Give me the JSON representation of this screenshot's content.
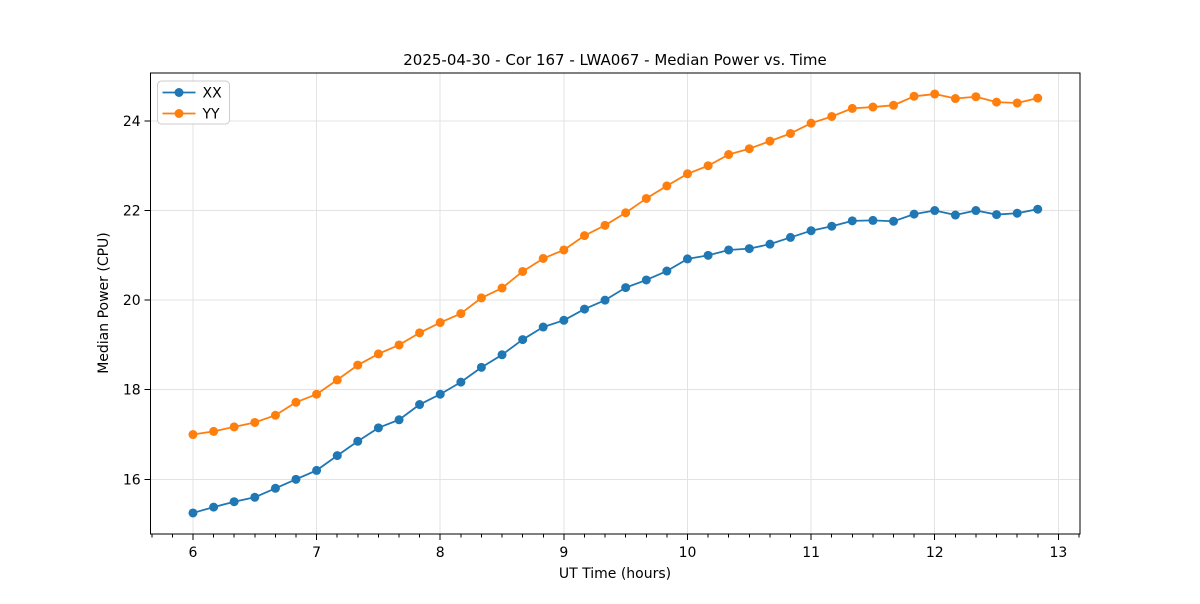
{
  "chart_data": {
    "type": "line",
    "title": "2025-04-30 - Cor 167 - LWA067 - Median Power vs. Time",
    "xlabel": "UT Time (hours)",
    "ylabel": "Median Power (CPU)",
    "xlim": [
      5.658,
      13.175
    ],
    "ylim": [
      14.78,
      25.07
    ],
    "xticks": [
      6,
      7,
      8,
      9,
      10,
      11,
      12,
      13
    ],
    "yticks": [
      16,
      18,
      20,
      22,
      24
    ],
    "x_minor_step": 0.166667,
    "grid": true,
    "legend_position": "upper left",
    "x": [
      6.0,
      6.167,
      6.333,
      6.5,
      6.667,
      6.833,
      7.0,
      7.167,
      7.333,
      7.5,
      7.667,
      7.833,
      8.0,
      8.167,
      8.333,
      8.5,
      8.667,
      8.833,
      9.0,
      9.167,
      9.333,
      9.5,
      9.667,
      9.833,
      10.0,
      10.167,
      10.333,
      10.5,
      10.667,
      10.833,
      11.0,
      11.167,
      11.333,
      11.5,
      11.667,
      11.833,
      12.0,
      12.167,
      12.333,
      12.5,
      12.667,
      12.833
    ],
    "series": [
      {
        "name": "XX",
        "color": "#1f77b4",
        "values": [
          15.25,
          15.38,
          15.5,
          15.6,
          15.8,
          16.0,
          16.2,
          16.53,
          16.85,
          17.15,
          17.33,
          17.67,
          17.9,
          18.17,
          18.5,
          18.78,
          19.12,
          19.4,
          19.55,
          19.8,
          20.0,
          20.28,
          20.45,
          20.65,
          20.92,
          21.0,
          21.12,
          21.15,
          21.25,
          21.4,
          21.55,
          21.65,
          21.77,
          21.78,
          21.76,
          21.92,
          22.0,
          21.9,
          22.0,
          21.91,
          21.94,
          22.03
        ]
      },
      {
        "name": "YY",
        "color": "#ff7f0e",
        "values": [
          17.0,
          17.07,
          17.17,
          17.27,
          17.43,
          17.72,
          17.9,
          18.22,
          18.55,
          18.8,
          19.0,
          19.27,
          19.5,
          19.7,
          20.05,
          20.27,
          20.64,
          20.93,
          21.12,
          21.44,
          21.67,
          21.95,
          22.27,
          22.55,
          22.82,
          23.0,
          23.25,
          23.38,
          23.55,
          23.72,
          23.95,
          24.1,
          24.28,
          24.31,
          24.35,
          24.55,
          24.6,
          24.5,
          24.54,
          24.42,
          24.4,
          24.51
        ]
      }
    ],
    "style": {
      "grid_color": "#e3e3e3",
      "spine_color": "#000000",
      "background": "#ffffff",
      "legend_border": "#cccccc",
      "marker_radius": 4.5,
      "line_width": 1.8
    }
  }
}
